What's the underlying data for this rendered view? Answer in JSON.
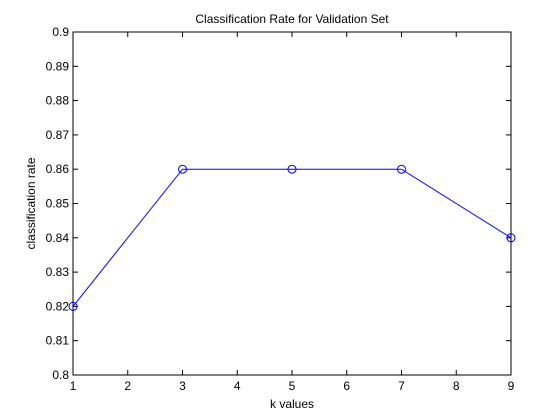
{
  "chart_data": {
    "type": "line",
    "title": "Classification Rate for Validation Set",
    "xlabel": "k values",
    "ylabel": "classification rate",
    "xlim": [
      1,
      9
    ],
    "ylim": [
      0.8,
      0.9
    ],
    "xticks": [
      1,
      2,
      3,
      4,
      5,
      6,
      7,
      8,
      9
    ],
    "yticks": [
      "0.8",
      "0.81",
      "0.82",
      "0.83",
      "0.84",
      "0.85",
      "0.86",
      "0.87",
      "0.88",
      "0.89",
      "0.9"
    ],
    "grid": false,
    "legend": null,
    "series": [
      {
        "x": [
          1,
          3,
          5,
          7,
          9
        ],
        "y": [
          0.82,
          0.86,
          0.86,
          0.86,
          0.84
        ],
        "color": "#0000ff",
        "marker": "circle"
      }
    ]
  }
}
